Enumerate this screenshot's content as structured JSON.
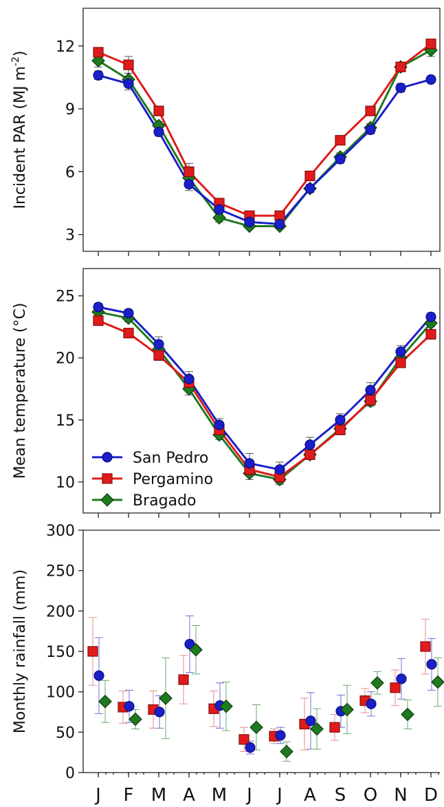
{
  "months": [
    "J",
    "F",
    "M",
    "A",
    "M",
    "J",
    "J",
    "A",
    "S",
    "O",
    "N",
    "D"
  ],
  "series_style": [
    {
      "name": "San Pedro",
      "marker": "circle",
      "fill": "#1a1fc8",
      "stroke": "#0b0f80",
      "line": "#1a1fc8",
      "err": "#6b6fd8"
    },
    {
      "name": "Pergamino",
      "marker": "square",
      "fill": "#e01b1b",
      "stroke": "#8a0b0b",
      "line": "#e01b1b",
      "err": "#e88a8a"
    },
    {
      "name": "Bragado",
      "marker": "diamond",
      "fill": "#1f7a1f",
      "stroke": "#0b3d0b",
      "line": "#1f7a1f",
      "err": "#6aa86a"
    }
  ],
  "chart_data": [
    {
      "type": "line",
      "ylabel_main": "Incident PAR (MJ m",
      "ylabel_sup": "-2",
      "ylabel_end": ")",
      "ylim": [
        2.2,
        13.8
      ],
      "yticks": [
        3,
        6,
        9,
        12
      ],
      "show_legend": false,
      "series": [
        {
          "name": "San Pedro",
          "values": [
            10.6,
            10.2,
            7.9,
            5.4,
            4.2,
            3.6,
            3.5,
            5.2,
            6.6,
            8.0,
            10.0,
            10.4
          ],
          "err": [
            0.2,
            0.3,
            0.2,
            0.3,
            0.2,
            0.2,
            0.2,
            0.2,
            0.2,
            0.2,
            0.2,
            0.1
          ]
        },
        {
          "name": "Pergamino",
          "values": [
            11.7,
            11.1,
            8.9,
            6.0,
            4.5,
            3.9,
            3.9,
            5.8,
            7.5,
            8.9,
            11.0,
            12.1
          ],
          "err": [
            0.2,
            0.4,
            0.2,
            0.4,
            0.2,
            0.1,
            0.1,
            0.2,
            0.2,
            0.2,
            0.2,
            0.2
          ]
        },
        {
          "name": "Bragado",
          "values": [
            11.3,
            10.4,
            8.2,
            5.7,
            3.8,
            3.4,
            3.4,
            5.2,
            6.7,
            8.1,
            11.0,
            11.8
          ],
          "err": [
            0.3,
            0.3,
            0.2,
            0.3,
            0.2,
            0.1,
            0.1,
            0.2,
            0.2,
            0.2,
            0.2,
            0.3
          ]
        }
      ]
    },
    {
      "type": "line",
      "ylabel_main": "Mean temperature (°C)",
      "ylabel_sup": "",
      "ylabel_end": "",
      "ylim": [
        7.5,
        27.2
      ],
      "yticks": [
        10,
        15,
        20,
        25
      ],
      "show_legend": true,
      "legend": "bottom-left",
      "series": [
        {
          "name": "San Pedro",
          "values": [
            24.1,
            23.6,
            21.1,
            18.3,
            14.6,
            11.5,
            11.0,
            13.0,
            15.0,
            17.4,
            20.5,
            23.3
          ],
          "err": [
            0.3,
            0.3,
            0.6,
            0.6,
            0.5,
            0.8,
            0.6,
            0.6,
            0.5,
            0.6,
            0.5,
            0.3
          ]
        },
        {
          "name": "Pergamino",
          "values": [
            23.0,
            22.0,
            20.2,
            18.0,
            14.2,
            11.0,
            10.4,
            12.2,
            14.2,
            16.6,
            19.6,
            21.9
          ],
          "err": [
            0.3,
            0.3,
            0.4,
            0.4,
            0.4,
            0.4,
            0.5,
            0.4,
            0.4,
            0.4,
            0.3,
            0.3
          ]
        },
        {
          "name": "Bragado",
          "values": [
            23.7,
            23.2,
            20.7,
            17.5,
            13.8,
            10.7,
            10.2,
            12.2,
            14.3,
            16.5,
            20.0,
            22.8
          ],
          "err": [
            0.3,
            0.3,
            0.4,
            0.5,
            0.4,
            0.5,
            0.4,
            0.4,
            0.4,
            0.4,
            0.3,
            0.3
          ]
        }
      ]
    },
    {
      "type": "scatter",
      "ylabel_main": "Monthly rainfall (mm)",
      "ylabel_sup": "",
      "ylabel_end": "",
      "ylim": [
        0,
        300
      ],
      "yticks": [
        0,
        50,
        100,
        150,
        200,
        250,
        300
      ],
      "show_legend": false,
      "series": [
        {
          "name": "San Pedro",
          "values": [
            120,
            82,
            75,
            159,
            83,
            31,
            46,
            64,
            76,
            85,
            116,
            134
          ],
          "err": [
            47,
            20,
            20,
            35,
            28,
            8,
            10,
            35,
            20,
            15,
            25,
            32
          ]
        },
        {
          "name": "Pergamino",
          "values": [
            150,
            81,
            78,
            115,
            79,
            41,
            45,
            60,
            56,
            89,
            105,
            156
          ],
          "err": [
            42,
            20,
            23,
            30,
            22,
            15,
            9,
            32,
            16,
            15,
            22,
            34
          ]
        },
        {
          "name": "Bragado",
          "values": [
            88,
            66,
            92,
            152,
            82,
            56,
            26,
            54,
            78,
            111,
            72,
            112
          ],
          "err": [
            26,
            12,
            50,
            30,
            30,
            28,
            12,
            25,
            30,
            14,
            18,
            30
          ]
        }
      ]
    }
  ]
}
